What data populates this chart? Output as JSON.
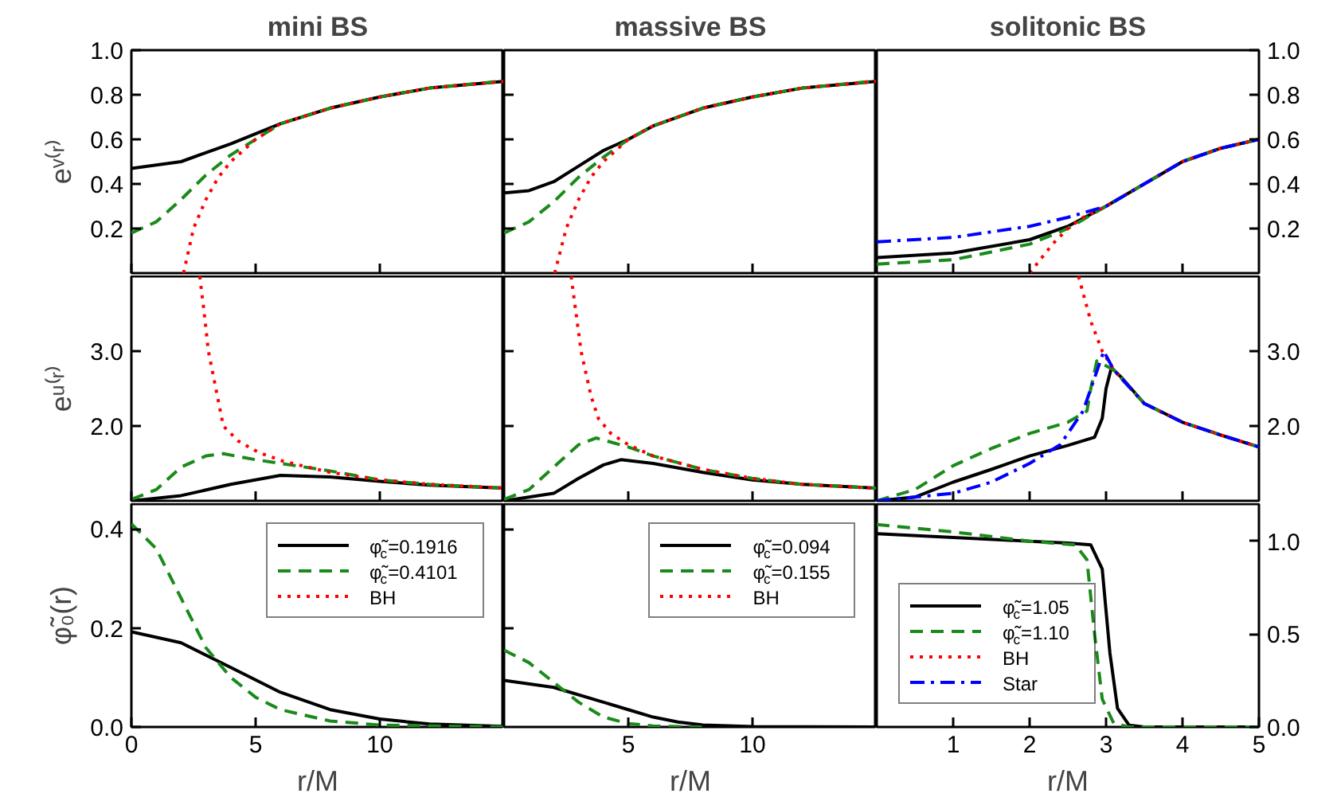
{
  "chart_data": [
    {
      "type": "line",
      "title": "mini BS",
      "ylabel": "eᵛ⁽ʳ⁾",
      "xlim": [
        0,
        15
      ],
      "ylim": [
        0,
        1
      ],
      "xticks": [
        0,
        5,
        10
      ],
      "yticks": [
        0.2,
        0.4,
        0.6,
        0.8,
        {
          "value": 1,
          "label": "1.0"
        }
      ],
      "tick_labels": "y",
      "series": [
        {
          "color": "#000000",
          "line_style": "solid",
          "x": [
            0,
            2,
            4,
            6,
            8,
            10,
            12,
            15
          ],
          "values": [
            0.47,
            0.5,
            0.58,
            0.67,
            0.74,
            0.79,
            0.83,
            0.86
          ]
        },
        {
          "color": "#1a8a1a",
          "line_style": "dashed",
          "x": [
            0,
            1,
            2,
            3,
            4,
            6,
            8,
            10,
            12,
            14.8
          ],
          "values": [
            0.18,
            0.23,
            0.33,
            0.44,
            0.53,
            0.67,
            0.74,
            0.79,
            0.83,
            0.86
          ]
        },
        {
          "color": "#ff0000",
          "line_style": "dotted",
          "x": [
            2.1,
            2.5,
            3,
            3.5,
            4,
            5,
            6,
            8,
            10,
            12,
            15
          ],
          "values": [
            0,
            0.2,
            0.33,
            0.43,
            0.5,
            0.6,
            0.67,
            0.74,
            0.79,
            0.83,
            0.86
          ]
        }
      ]
    },
    {
      "type": "line",
      "title": "massive BS",
      "xlim": [
        0,
        15
      ],
      "ylim": [
        0,
        1
      ],
      "xticks": [
        5,
        10
      ],
      "yticks": [
        0.2,
        0.4,
        0.6,
        0.8
      ],
      "tick_labels": false,
      "series": [
        {
          "color": "#000000",
          "line_style": "solid",
          "x": [
            0,
            1,
            2,
            3,
            4,
            5,
            6,
            8,
            10,
            12,
            15
          ],
          "values": [
            0.36,
            0.37,
            0.41,
            0.48,
            0.55,
            0.6,
            0.66,
            0.74,
            0.79,
            0.83,
            0.86
          ]
        },
        {
          "color": "#1a8a1a",
          "line_style": "dashed",
          "x": [
            0,
            1,
            2,
            3,
            4,
            5,
            6,
            8,
            10,
            12,
            14.8
          ],
          "values": [
            0.18,
            0.23,
            0.32,
            0.43,
            0.52,
            0.6,
            0.66,
            0.74,
            0.79,
            0.83,
            0.86
          ]
        },
        {
          "color": "#ff0000",
          "line_style": "dotted",
          "x": [
            2.04,
            2.5,
            3,
            3.5,
            4,
            5,
            6,
            8,
            10,
            12,
            15
          ],
          "values": [
            0,
            0.2,
            0.33,
            0.43,
            0.5,
            0.6,
            0.66,
            0.74,
            0.79,
            0.83,
            0.86
          ]
        }
      ]
    },
    {
      "type": "line",
      "title": "solitonic BS",
      "xlim": [
        0,
        5
      ],
      "ylim": [
        0,
        1
      ],
      "xticks": [
        1,
        2,
        3,
        4
      ],
      "yticks": [
        0.2,
        0.4,
        0.6,
        0.8,
        {
          "value": 1,
          "label": "1.0"
        }
      ],
      "tick_labels": "y",
      "series": [
        {
          "color": "#000000",
          "line_style": "solid",
          "x": [
            0,
            1,
            2,
            2.5,
            3,
            3.5,
            4,
            4.5,
            5
          ],
          "values": [
            0.07,
            0.09,
            0.15,
            0.21,
            0.3,
            0.4,
            0.5,
            0.56,
            0.6
          ]
        },
        {
          "color": "#1a8a1a",
          "line_style": "dashed",
          "x": [
            0,
            1,
            2,
            2.5,
            3,
            3.5,
            4,
            4.5,
            5
          ],
          "values": [
            0.04,
            0.06,
            0.13,
            0.2,
            0.3,
            0.4,
            0.5,
            0.56,
            0.6
          ]
        },
        {
          "color": "#ff0000",
          "line_style": "dotted",
          "x": [
            2,
            2.3,
            2.5,
            2.7,
            3,
            3.5,
            4,
            4.5,
            5
          ],
          "values": [
            0,
            0.13,
            0.2,
            0.25,
            0.3,
            0.4,
            0.5,
            0.56,
            0.6
          ]
        },
        {
          "color": "#0000ff",
          "line_style": "dashdot",
          "x": [
            0,
            1,
            2,
            2.5,
            3,
            3.5,
            4,
            4.5,
            5
          ],
          "values": [
            0.14,
            0.16,
            0.21,
            0.25,
            0.3,
            0.4,
            0.5,
            0.56,
            0.6
          ]
        }
      ]
    },
    {
      "type": "line",
      "ylabel": "eᵘ⁽ʳ⁾",
      "xlim": [
        0,
        15
      ],
      "ylim": [
        1,
        4
      ],
      "xticks": [
        0,
        5,
        10
      ],
      "yticks": [
        {
          "value": 2,
          "label": "2.0"
        },
        {
          "value": 3,
          "label": "3.0"
        }
      ],
      "tick_labels": "y",
      "series": [
        {
          "color": "#000000",
          "line_style": "solid",
          "x": [
            0,
            2,
            4,
            6,
            8,
            10,
            12,
            15
          ],
          "values": [
            1.0,
            1.07,
            1.22,
            1.34,
            1.32,
            1.26,
            1.21,
            1.17
          ]
        },
        {
          "color": "#1a8a1a",
          "line_style": "dashed",
          "x": [
            0,
            1,
            2,
            3,
            3.7,
            5,
            6,
            8,
            10,
            12,
            15
          ],
          "values": [
            1.02,
            1.15,
            1.45,
            1.6,
            1.63,
            1.55,
            1.5,
            1.4,
            1.28,
            1.22,
            1.17
          ]
        },
        {
          "color": "#ff0000",
          "line_style": "dotted",
          "x": [
            2.75,
            2.9,
            3.1,
            3.4,
            3.7,
            4.3,
            5.1,
            6.1,
            8,
            10,
            12,
            15
          ],
          "values": [
            4.0,
            3.6,
            3.0,
            2.5,
            2.0,
            1.8,
            1.65,
            1.53,
            1.38,
            1.28,
            1.22,
            1.17
          ]
        }
      ]
    },
    {
      "type": "line",
      "xlim": [
        0,
        15
      ],
      "ylim": [
        1,
        4
      ],
      "xticks": [
        5,
        10
      ],
      "yticks": [
        2,
        3
      ],
      "tick_labels": false,
      "series": [
        {
          "color": "#000000",
          "line_style": "solid",
          "x": [
            0,
            2,
            3,
            4,
            4.7,
            6,
            8,
            10,
            12,
            15
          ],
          "values": [
            1.0,
            1.1,
            1.3,
            1.48,
            1.55,
            1.5,
            1.38,
            1.28,
            1.22,
            1.17
          ]
        },
        {
          "color": "#1a8a1a",
          "line_style": "dashed",
          "x": [
            0,
            1,
            2,
            3,
            3.7,
            5,
            6,
            8,
            10,
            12,
            15
          ],
          "values": [
            1.02,
            1.15,
            1.45,
            1.75,
            1.84,
            1.72,
            1.6,
            1.42,
            1.3,
            1.22,
            1.17
          ]
        },
        {
          "color": "#ff0000",
          "line_style": "dotted",
          "x": [
            2.7,
            2.9,
            3.1,
            3.5,
            3.8,
            4.3,
            5,
            6,
            8,
            10,
            12,
            14.8
          ],
          "values": [
            4.0,
            3.5,
            3.0,
            2.4,
            2.1,
            1.9,
            1.75,
            1.6,
            1.42,
            1.3,
            1.22,
            1.17
          ]
        }
      ]
    },
    {
      "type": "line",
      "xlim": [
        0,
        5
      ],
      "ylim": [
        1,
        4
      ],
      "xticks": [
        1,
        2,
        3,
        4
      ],
      "yticks": [
        {
          "value": 2,
          "label": "2.0"
        },
        {
          "value": 3,
          "label": "3.0"
        }
      ],
      "tick_labels": "y",
      "series": [
        {
          "color": "#000000",
          "line_style": "solid",
          "x": [
            0,
            0.5,
            1,
            1.5,
            2,
            2.5,
            2.85,
            2.95,
            3.0,
            3.07,
            3.2,
            3.5,
            4,
            4.5,
            5
          ],
          "values": [
            1.0,
            1.05,
            1.25,
            1.42,
            1.6,
            1.74,
            1.85,
            2.1,
            2.5,
            2.78,
            2.65,
            2.3,
            2.05,
            1.88,
            1.72
          ]
        },
        {
          "color": "#1a8a1a",
          "line_style": "dashed",
          "x": [
            0,
            0.5,
            1,
            1.5,
            2,
            2.5,
            2.75,
            2.8,
            2.88,
            3.1,
            3.5,
            4,
            4.5,
            5
          ],
          "values": [
            1.0,
            1.15,
            1.47,
            1.7,
            1.9,
            2.05,
            2.2,
            2.5,
            2.87,
            2.75,
            2.3,
            2.05,
            1.88,
            1.72
          ]
        },
        {
          "color": "#ff0000",
          "line_style": "dotted",
          "x": [
            2.64,
            2.8,
            2.95,
            3.1,
            3.5,
            4,
            4.5,
            5
          ],
          "values": [
            4.0,
            3.4,
            3.0,
            2.75,
            2.3,
            2.05,
            1.88,
            1.72
          ]
        },
        {
          "color": "#0000ff",
          "line_style": "dashdot",
          "x": [
            0,
            1,
            1.5,
            2,
            2.4,
            2.7,
            2.97,
            3.1,
            3.5,
            4,
            4.5,
            5
          ],
          "values": [
            1.0,
            1.1,
            1.25,
            1.5,
            1.75,
            2.2,
            3.0,
            2.75,
            2.3,
            2.05,
            1.88,
            1.72
          ]
        }
      ]
    },
    {
      "type": "line",
      "ylabel": "φ̃₀(r)",
      "xlabel": "r/M",
      "xlim": [
        0,
        15
      ],
      "ylim": [
        0,
        0.45
      ],
      "xticks": [
        0,
        5,
        10
      ],
      "yticks": [
        {
          "value": 0,
          "label": "0.0"
        },
        0.2,
        0.4
      ],
      "legend": "top right",
      "series": [
        {
          "name": "φ̃$_{c}$=0.1916",
          "color": "#000000",
          "line_style": "solid",
          "x": [
            0,
            2,
            4,
            6,
            8,
            10,
            12,
            15
          ],
          "values": [
            0.192,
            0.17,
            0.12,
            0.07,
            0.035,
            0.016,
            0.006,
            0.001
          ]
        },
        {
          "name": "φ̃$_{c}$=0.4101",
          "color": "#1a8a1a",
          "line_style": "dashed",
          "x": [
            0,
            1,
            2,
            3,
            4,
            5,
            6,
            8,
            10,
            15
          ],
          "values": [
            0.41,
            0.36,
            0.26,
            0.16,
            0.1,
            0.06,
            0.035,
            0.012,
            0.004,
            0
          ]
        },
        {
          "name": "BH",
          "color": "#ff0000",
          "line_style": "dotted"
        }
      ]
    },
    {
      "type": "line",
      "xlabel": "r/M",
      "xlim": [
        0,
        15
      ],
      "ylim": [
        0,
        0.45
      ],
      "xticks": [
        5,
        10
      ],
      "yticks": [
        0.2,
        0.4
      ],
      "tick_labels": "x",
      "legend": "top right",
      "series": [
        {
          "name": "φ̃$_{c}$=0.094",
          "color": "#000000",
          "line_style": "solid",
          "x": [
            0,
            2,
            4,
            5,
            6,
            7,
            8,
            10,
            15
          ],
          "values": [
            0.094,
            0.08,
            0.05,
            0.035,
            0.02,
            0.01,
            0.004,
            0.001,
            0
          ]
        },
        {
          "name": "φ̃$_{c}$=0.155",
          "color": "#1a8a1a",
          "line_style": "dashed",
          "x": [
            0,
            1,
            2,
            3,
            4,
            5,
            6,
            8
          ],
          "values": [
            0.155,
            0.13,
            0.09,
            0.05,
            0.02,
            0.007,
            0.002,
            0
          ]
        },
        {
          "name": "BH",
          "color": "#ff0000",
          "line_style": "dotted"
        }
      ]
    },
    {
      "type": "line",
      "xlabel": "r/M",
      "xlim": [
        0,
        5
      ],
      "ylim": [
        0,
        1.2
      ],
      "xticks": [
        1,
        2,
        3,
        4,
        5
      ],
      "yticks": [
        {
          "value": 0,
          "label": "0.0"
        },
        0.5,
        {
          "value": 1,
          "label": "1.0"
        }
      ],
      "legend": "bottom left",
      "series": [
        {
          "name": "φ̃$_{c}$=1.05",
          "color": "#000000",
          "line_style": "solid",
          "x": [
            0,
            1,
            2,
            2.5,
            2.8,
            2.95,
            3.05,
            3.15,
            3.3,
            3.5,
            5
          ],
          "values": [
            1.04,
            1.02,
            1.0,
            0.99,
            0.98,
            0.85,
            0.4,
            0.1,
            0.01,
            0,
            0
          ]
        },
        {
          "name": "φ̃$_{c}$=1.10",
          "color": "#1a8a1a",
          "line_style": "dashed",
          "x": [
            0,
            1,
            2,
            2.6,
            2.75,
            2.85,
            2.95,
            3.1,
            3.3,
            5
          ],
          "values": [
            1.09,
            1.05,
            1.0,
            0.98,
            0.9,
            0.5,
            0.15,
            0.02,
            0,
            0
          ]
        },
        {
          "name": "BH",
          "color": "#ff0000",
          "line_style": "dotted"
        },
        {
          "name": "Star",
          "color": "#0000ff",
          "line_style": "dashdot"
        }
      ]
    }
  ]
}
